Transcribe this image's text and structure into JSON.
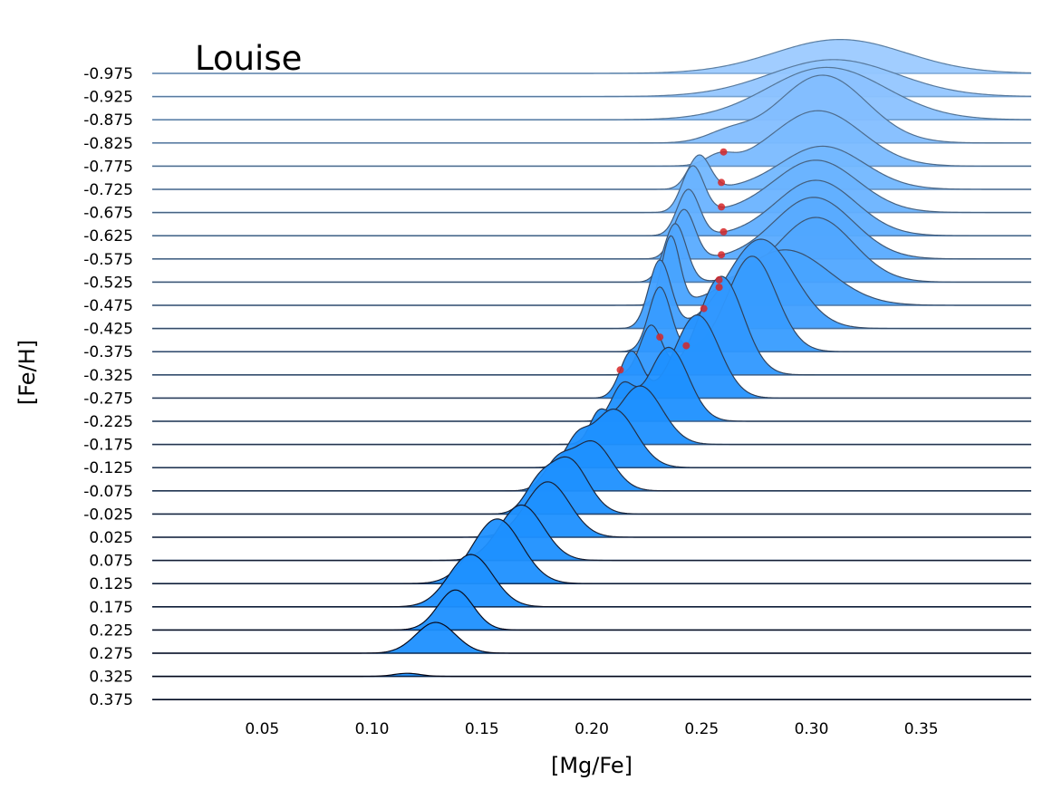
{
  "chart_data": {
    "type": "ridgeline",
    "title": "Louise",
    "xlabel": "[Mg/Fe]",
    "ylabel": "[Fe/H]",
    "xlim": [
      0.0,
      0.4
    ],
    "xticks": [
      0.05,
      0.1,
      0.15,
      0.2,
      0.25,
      0.3,
      0.35
    ],
    "xtick_labels": [
      "0.05",
      "0.10",
      "0.15",
      "0.20",
      "0.25",
      "0.30",
      "0.35"
    ],
    "fill_color_light": "#9ccaff",
    "fill_color_dark": "#1e90ff",
    "marker_color": "#d62728",
    "ridges": [
      {
        "feh": "-0.975",
        "peaks": [
          {
            "mu": 0.313,
            "sigma": 0.03,
            "h": 0.55
          }
        ],
        "median": null
      },
      {
        "feh": "-0.925",
        "peaks": [
          {
            "mu": 0.31,
            "sigma": 0.029,
            "h": 0.6
          }
        ],
        "median": null
      },
      {
        "feh": "-0.875",
        "peaks": [
          {
            "mu": 0.307,
            "sigma": 0.027,
            "h": 0.85
          }
        ],
        "median": null
      },
      {
        "feh": "-0.825",
        "peaks": [
          {
            "mu": 0.305,
            "sigma": 0.02,
            "h": 1.1
          },
          {
            "mu": 0.262,
            "sigma": 0.01,
            "h": 0.15
          }
        ],
        "median": null
      },
      {
        "feh": "-0.775",
        "peaks": [
          {
            "mu": 0.303,
            "sigma": 0.02,
            "h": 0.9
          },
          {
            "mu": 0.258,
            "sigma": 0.006,
            "h": 0.15
          }
        ],
        "median": 0.26
      },
      {
        "feh": "-0.725",
        "peaks": [
          {
            "mu": 0.305,
            "sigma": 0.019,
            "h": 0.7
          },
          {
            "mu": 0.249,
            "sigma": 0.005,
            "h": 0.55
          }
        ],
        "median": 0.259
      },
      {
        "feh": "-0.675",
        "peaks": [
          {
            "mu": 0.302,
            "sigma": 0.019,
            "h": 0.85
          },
          {
            "mu": 0.246,
            "sigma": 0.005,
            "h": 0.75
          }
        ],
        "median": 0.259
      },
      {
        "feh": "-0.625",
        "peaks": [
          {
            "mu": 0.302,
            "sigma": 0.018,
            "h": 0.9
          },
          {
            "mu": 0.244,
            "sigma": 0.005,
            "h": 0.75
          }
        ],
        "median": 0.26
      },
      {
        "feh": "-0.575",
        "peaks": [
          {
            "mu": 0.301,
            "sigma": 0.018,
            "h": 1.0
          },
          {
            "mu": 0.242,
            "sigma": 0.005,
            "h": 0.8
          }
        ],
        "median": 0.259
      },
      {
        "feh": "-0.525",
        "peaks": [
          {
            "mu": 0.302,
            "sigma": 0.017,
            "h": 1.05
          },
          {
            "mu": 0.238,
            "sigma": 0.005,
            "h": 0.95
          }
        ],
        "median": 0.258
      },
      {
        "feh": "-0.475",
        "peaks": [
          {
            "mu": 0.288,
            "sigma": 0.02,
            "h": 0.9
          },
          {
            "mu": 0.236,
            "sigma": 0.004,
            "h": 1.1
          }
        ],
        "median": 0.258
      },
      {
        "feh": "-0.425",
        "peaks": [
          {
            "mu": 0.277,
            "sigma": 0.015,
            "h": 1.45
          },
          {
            "mu": 0.231,
            "sigma": 0.005,
            "h": 1.1
          }
        ],
        "median": 0.251
      },
      {
        "feh": "-0.375",
        "peaks": [
          {
            "mu": 0.273,
            "sigma": 0.011,
            "h": 1.55
          },
          {
            "mu": 0.231,
            "sigma": 0.005,
            "h": 1.05
          }
        ],
        "median": 0.243
      },
      {
        "feh": "-0.325",
        "peaks": [
          {
            "mu": 0.259,
            "sigma": 0.01,
            "h": 1.6
          },
          {
            "mu": 0.227,
            "sigma": 0.005,
            "h": 0.8
          }
        ],
        "median": 0.231
      },
      {
        "feh": "-0.275",
        "peaks": [
          {
            "mu": 0.248,
            "sigma": 0.01,
            "h": 1.35
          },
          {
            "mu": 0.218,
            "sigma": 0.005,
            "h": 0.75
          }
        ],
        "median": 0.213
      },
      {
        "feh": "-0.225",
        "peaks": [
          {
            "mu": 0.235,
            "sigma": 0.009,
            "h": 1.2
          },
          {
            "mu": 0.214,
            "sigma": 0.005,
            "h": 0.55
          }
        ],
        "median": null
      },
      {
        "feh": "-0.175",
        "peaks": [
          {
            "mu": 0.222,
            "sigma": 0.01,
            "h": 0.95
          },
          {
            "mu": 0.203,
            "sigma": 0.004,
            "h": 0.4
          }
        ],
        "median": null
      },
      {
        "feh": "-0.125",
        "peaks": [
          {
            "mu": 0.21,
            "sigma": 0.01,
            "h": 0.95
          },
          {
            "mu": 0.193,
            "sigma": 0.005,
            "h": 0.35
          }
        ],
        "median": null
      },
      {
        "feh": "-0.075",
        "peaks": [
          {
            "mu": 0.2,
            "sigma": 0.009,
            "h": 0.8
          },
          {
            "mu": 0.184,
            "sigma": 0.006,
            "h": 0.4
          }
        ],
        "median": null
      },
      {
        "feh": "-0.025",
        "peaks": [
          {
            "mu": 0.189,
            "sigma": 0.009,
            "h": 0.9
          },
          {
            "mu": 0.175,
            "sigma": 0.006,
            "h": 0.35
          }
        ],
        "median": null
      },
      {
        "feh": "0.025",
        "peaks": [
          {
            "mu": 0.18,
            "sigma": 0.01,
            "h": 0.9
          }
        ],
        "median": null
      },
      {
        "feh": "0.075",
        "peaks": [
          {
            "mu": 0.168,
            "sigma": 0.01,
            "h": 0.9
          }
        ],
        "median": null
      },
      {
        "feh": "0.125",
        "peaks": [
          {
            "mu": 0.157,
            "sigma": 0.011,
            "h": 1.05
          }
        ],
        "median": null
      },
      {
        "feh": "0.175",
        "peaks": [
          {
            "mu": 0.145,
            "sigma": 0.01,
            "h": 0.85
          }
        ],
        "median": null
      },
      {
        "feh": "0.225",
        "peaks": [
          {
            "mu": 0.138,
            "sigma": 0.008,
            "h": 0.65
          }
        ],
        "median": null
      },
      {
        "feh": "0.275",
        "peaks": [
          {
            "mu": 0.129,
            "sigma": 0.009,
            "h": 0.5
          }
        ],
        "median": null
      },
      {
        "feh": "0.325",
        "peaks": [
          {
            "mu": 0.116,
            "sigma": 0.006,
            "h": 0.05
          }
        ],
        "median": null
      },
      {
        "feh": "0.375",
        "peaks": [],
        "median": null
      }
    ]
  }
}
